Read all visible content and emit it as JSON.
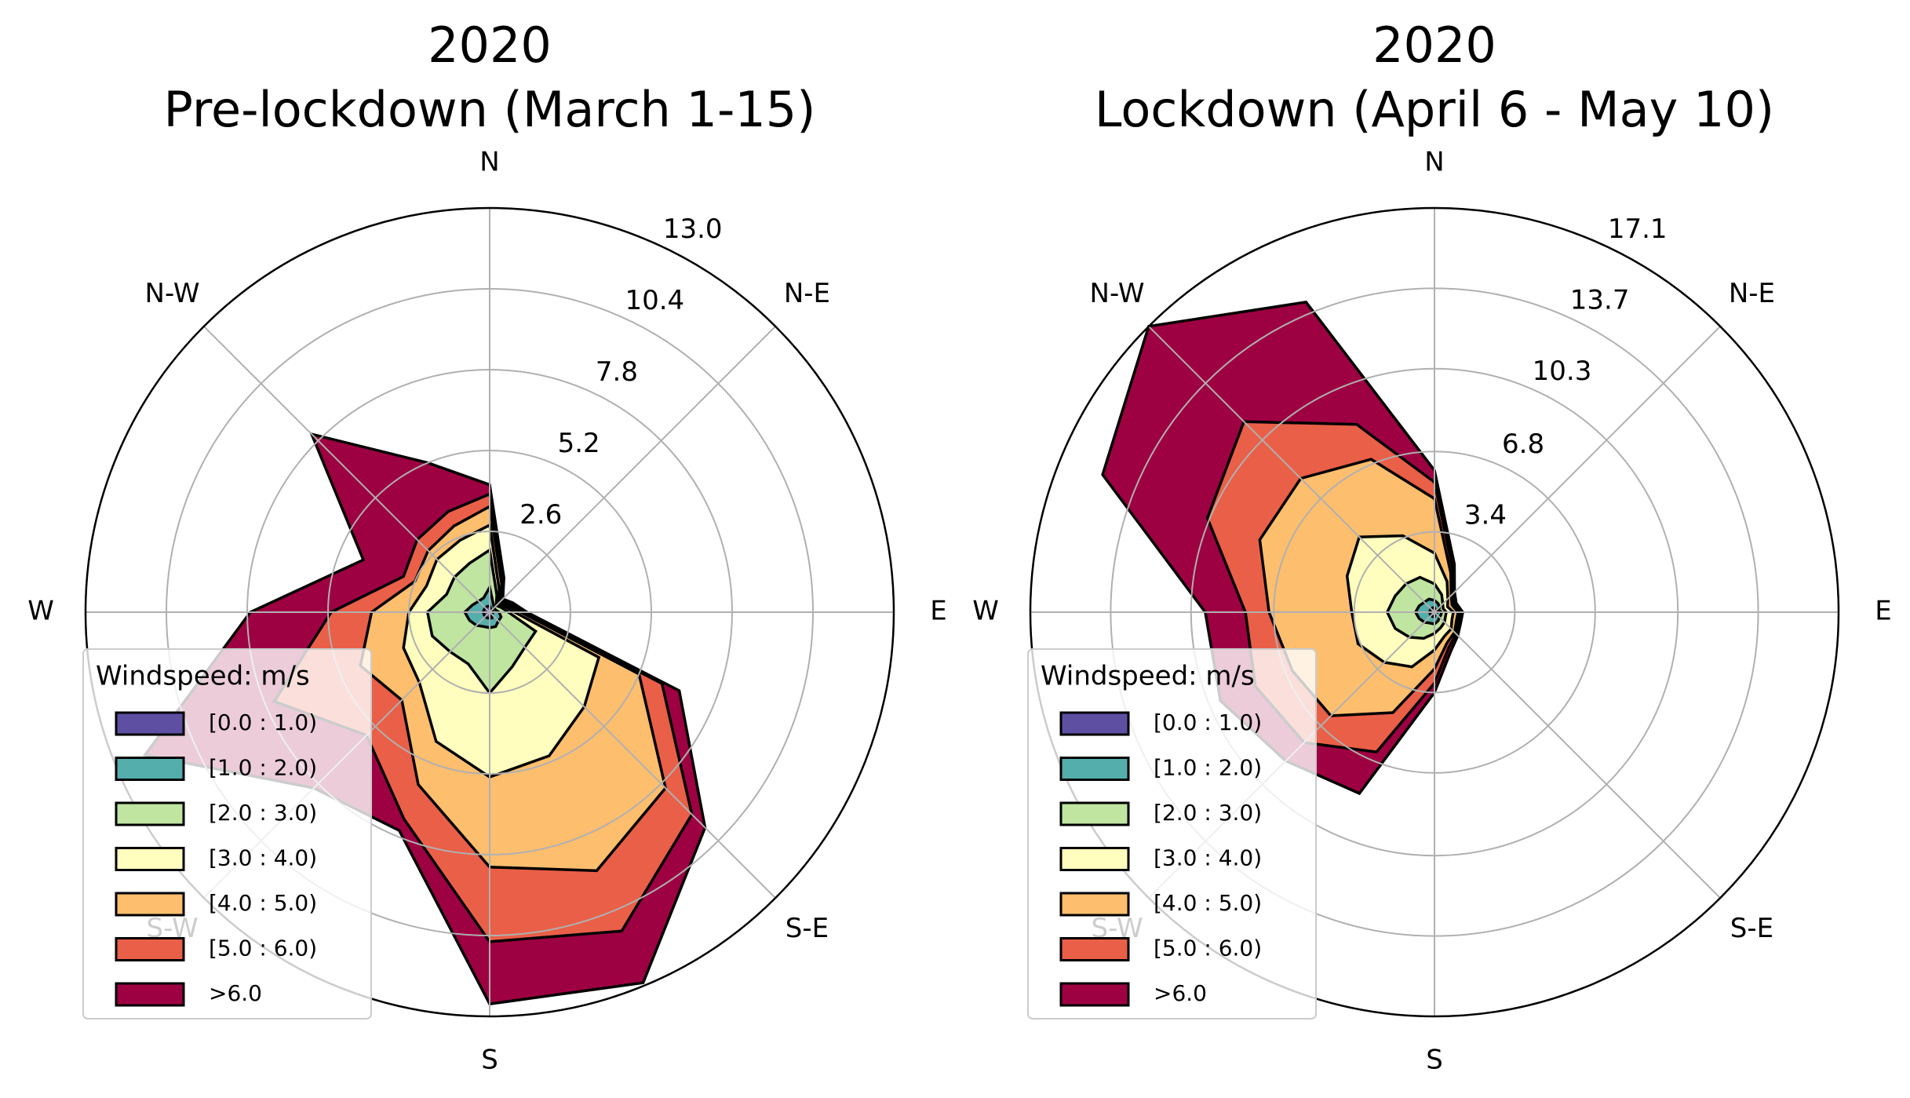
{
  "chart_data": [
    {
      "type": "windrose",
      "title": "2020",
      "subtitle": "Pre-lockdown (March 1-15)",
      "direction_labels": [
        "N",
        "N-E",
        "E",
        "S-E",
        "S",
        "S-W",
        "W",
        "N-W"
      ],
      "rlim": [
        0,
        13
      ],
      "rticks": [
        2.6,
        5.2,
        7.8,
        10.4,
        {
          "value": 13,
          "label": "13.0"
        }
      ],
      "grid": true,
      "legend_title": "Windspeed: m/s",
      "legend": "lower left",
      "series": [
        {
          "name": "[0.0 : 1.0)",
          "color": "#5e4fa2",
          "values": [
            0.2,
            0.1,
            0.1,
            0.1,
            0.1,
            0.1,
            0.1,
            0.2,
            0.2,
            0.2,
            0.2,
            0.2,
            0.2,
            0.2,
            0.2,
            0.2
          ]
        },
        {
          "name": "[1.0 : 2.0)",
          "color": "#54aeac",
          "values": [
            0.6,
            0.2,
            0.1,
            0.1,
            0.2,
            0.3,
            0.3,
            0.3,
            0.3,
            0.3,
            0.4,
            0.5,
            0.6,
            0.4,
            0.3,
            0.3
          ]
        },
        {
          "name": "[2.0 : 3.0)",
          "color": "#bfe5a0",
          "values": [
            1.2,
            0.3,
            0.1,
            0.2,
            0.3,
            1.2,
            1.2,
            1.4,
            2.1,
            1.3,
            1.2,
            1.3,
            1.2,
            0.9,
            1.1,
            1.2
          ]
        },
        {
          "name": "[3.0 : 4.0)",
          "color": "#fffebe",
          "values": [
            0.8,
            0.2,
            0.1,
            0.1,
            0.2,
            2.2,
            2.7,
            3.1,
            2.7,
            2.7,
            1.4,
            1.0,
            0.6,
            0.7,
            0.8,
            0.8
          ]
        },
        {
          "name": "[4.0 : 5.0)",
          "color": "#fdbe6e",
          "values": [
            0.6,
            0.2,
            0.1,
            0.1,
            0.2,
            1.4,
            3.7,
            4.0,
            2.9,
            1.5,
            0.8,
            1.5,
            1.2,
            0.4,
            0.4,
            0.5
          ]
        },
        {
          "name": "[5.0 : 6.0)",
          "color": "#ea5f47",
          "values": [
            0.4,
            0.1,
            0.0,
            0.1,
            0.1,
            0.8,
            1.2,
            2.1,
            2.4,
            1.2,
            1.6,
            3.0,
            1.3,
            0.4,
            0.5,
            0.5
          ]
        },
        {
          "name": ">6.0",
          "color": "#9e0142",
          "values": [
            0.3,
            0.1,
            0.1,
            0.1,
            0.1,
            0.6,
            0.6,
            1.8,
            2.0,
            0.4,
            2.4,
            4.5,
            2.6,
            1.4,
            4.8,
            1.7
          ]
        }
      ]
    },
    {
      "type": "windrose",
      "title": "2020",
      "subtitle": "Lockdown (April 6 - May 10)",
      "direction_labels": [
        "N",
        "N-E",
        "E",
        "S-E",
        "S",
        "S-W",
        "W",
        "N-W"
      ],
      "rlim": [
        0,
        17.1
      ],
      "rticks": [
        3.4,
        6.8,
        10.3,
        13.7,
        17.1
      ],
      "grid": true,
      "legend_title": "Windspeed: m/s",
      "legend": "lower left",
      "series": [
        {
          "name": "[0.0 : 1.0)",
          "color": "#5e4fa2",
          "values": [
            0.2,
            0.1,
            0.1,
            0.1,
            0.1,
            0.1,
            0.1,
            0.1,
            0.2,
            0.2,
            0.2,
            0.2,
            0.2,
            0.2,
            0.2,
            0.2
          ]
        },
        {
          "name": "[1.0 : 2.0)",
          "color": "#54aeac",
          "values": [
            0.3,
            0.3,
            0.2,
            0.1,
            0.2,
            0.2,
            0.2,
            0.3,
            0.3,
            0.3,
            0.4,
            0.5,
            0.6,
            0.5,
            0.4,
            0.4
          ]
        },
        {
          "name": "[2.0 : 3.0)",
          "color": "#bfe5a0",
          "values": [
            0.7,
            0.4,
            0.2,
            0.2,
            0.2,
            0.2,
            0.3,
            0.3,
            0.4,
            0.7,
            0.9,
            1.1,
            1.2,
            1.1,
            1.1,
            1.0
          ]
        },
        {
          "name": "[3.0 : 4.0)",
          "color": "#fffebe",
          "values": [
            1.3,
            0.6,
            0.3,
            0.2,
            0.3,
            0.3,
            0.4,
            0.4,
            0.7,
            1.3,
            1.5,
            1.7,
            1.5,
            2.2,
            2.8,
            1.9
          ]
        },
        {
          "name": "[4.0 : 5.0)",
          "color": "#fdbe6e",
          "values": [
            2.3,
            0.4,
            0.2,
            0.2,
            0.2,
            0.2,
            0.2,
            0.3,
            0.8,
            2.1,
            3.2,
            3.0,
            3.5,
            4.0,
            3.5,
            3.5
          ]
        },
        {
          "name": "[5.0 : 6.0)",
          "color": "#ea5f47",
          "values": [
            0.7,
            0.2,
            0.1,
            0.1,
            0.1,
            0.1,
            0.1,
            0.2,
            0.6,
            1.8,
            1.6,
            1.7,
            1.0,
            2.4,
            3.4,
            1.6
          ]
        },
        {
          "name": ">6.0",
          "color": "#9e0142",
          "values": [
            0.5,
            0.2,
            0.1,
            0.1,
            0.1,
            0.1,
            0.1,
            0.2,
            0.4,
            1.9,
            1.1,
            1.6,
            1.7,
            4.8,
            5.7,
            5.6
          ]
        }
      ]
    }
  ]
}
